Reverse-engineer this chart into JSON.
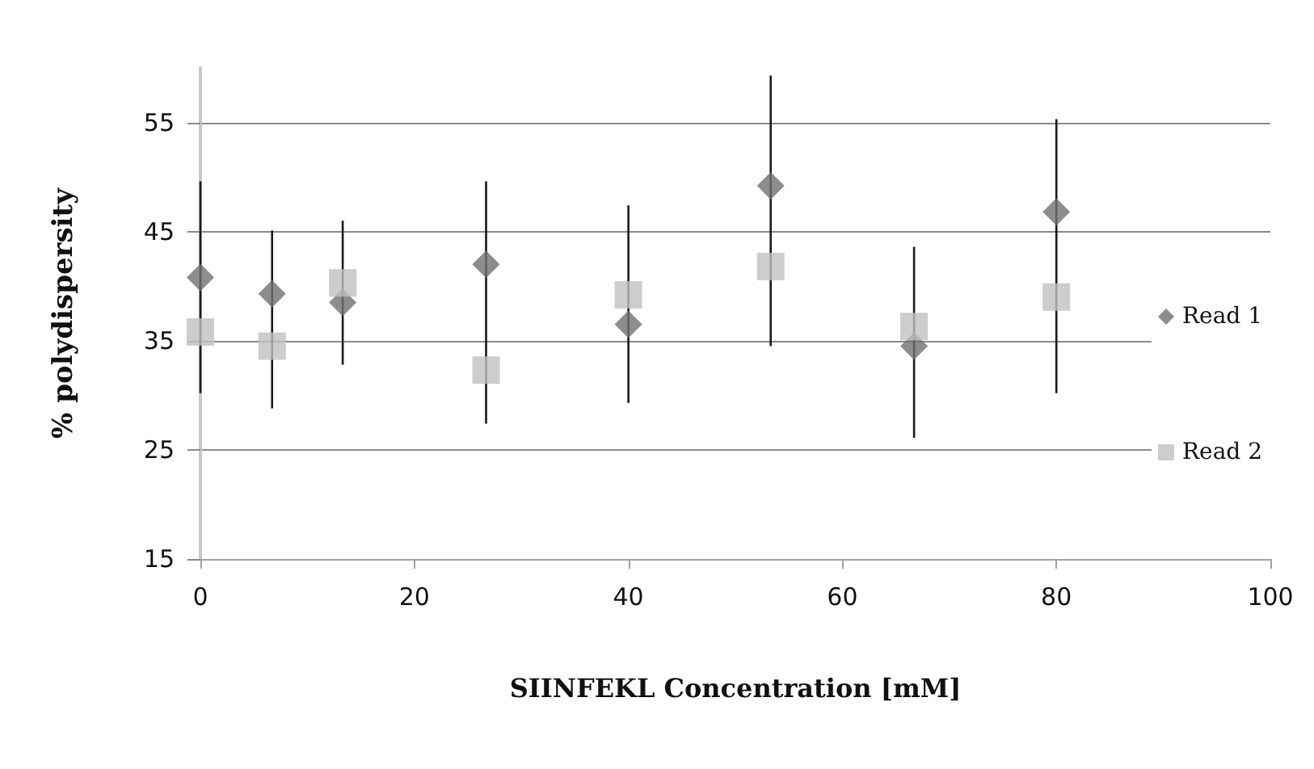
{
  "chart_data": {
    "type": "scatter",
    "xlabel": "SIINFEKL Concentration [mM]",
    "ylabel": "% polydispersity",
    "x": [
      0,
      6.7,
      13.3,
      26.7,
      40,
      53.3,
      66.7,
      80
    ],
    "series": [
      {
        "name": "Read 1",
        "color": "#707070",
        "marker": "diamond",
        "values": [
          40.8,
          39.3,
          38.5,
          42,
          36.5,
          49.2,
          34.5,
          46.8
        ],
        "errors": [
          [
            30.2,
            49.6
          ],
          [
            28.8,
            45.1
          ],
          [
            32.8,
            46
          ],
          [
            27.4,
            49.6
          ],
          [
            29.3,
            47.4
          ],
          [
            34.5,
            59.3
          ],
          [
            26.1,
            43.6
          ],
          [
            30.2,
            55.3
          ]
        ]
      },
      {
        "name": "Read 2",
        "color": "#c0c0c0",
        "marker": "square",
        "values": [
          35.8,
          34.5,
          40.3,
          32.3,
          39.2,
          41.8,
          36.3,
          39
        ]
      }
    ],
    "xlim": [
      0,
      100
    ],
    "xticks": [
      0,
      20,
      40,
      60,
      80,
      100
    ],
    "ylim": [
      15,
      60
    ],
    "yticks": [
      15,
      25,
      35,
      45,
      55
    ],
    "grid": "y",
    "legend": "right"
  }
}
